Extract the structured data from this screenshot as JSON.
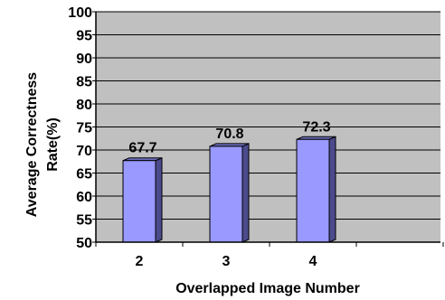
{
  "chart_data": {
    "type": "bar",
    "categories": [
      "2",
      "3",
      "4"
    ],
    "values": [
      67.7,
      70.8,
      72.3
    ],
    "value_labels": [
      "67.7",
      "70.8",
      "72.3"
    ],
    "xlabel": "Overlapped Image Number",
    "ylabel_line1": "Average Correctness",
    "ylabel_line2": "Rate(%)",
    "ylim": [
      50,
      100
    ],
    "yticks": [
      "50",
      "55",
      "60",
      "65",
      "70",
      "75",
      "80",
      "85",
      "90",
      "95",
      "100"
    ],
    "grid": true,
    "legend": "none",
    "colors": {
      "plot_background": "#c0c0c0",
      "bar_front": "#9999ff",
      "bar_side": "#4b4b8c",
      "bar_top": "#6e6ebc",
      "grid": "#000000"
    }
  }
}
